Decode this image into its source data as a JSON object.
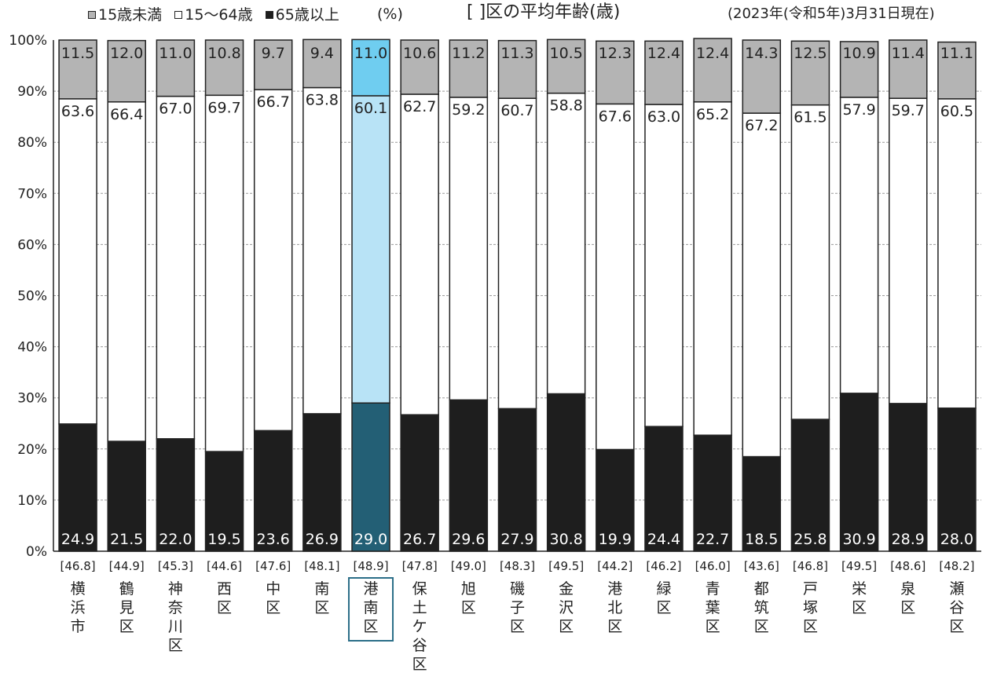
{
  "header": {
    "legend": [
      {
        "label": "15歳未満",
        "color": "#b4b4b4"
      },
      {
        "label": "15～64歳",
        "color": "#ffffff"
      },
      {
        "label": "65歳以上",
        "color": "#1e1e1e"
      }
    ],
    "unit": "(%)",
    "title": "[ ]区の平均年齢(歳)",
    "date": "(2023年(令和5年)3月31日現在)"
  },
  "chart_data": {
    "type": "bar",
    "stacked": true,
    "ylim": [
      0,
      100
    ],
    "yticks": [
      "0%",
      "10%",
      "20%",
      "30%",
      "40%",
      "50%",
      "60%",
      "70%",
      "80%",
      "90%",
      "100%"
    ],
    "categories": [
      "横浜市",
      "鶴見区",
      "神奈川区",
      "西区",
      "中区",
      "南区",
      "港南区",
      "保土ケ谷区",
      "旭区",
      "磯子区",
      "金沢区",
      "港北区",
      "緑区",
      "青葉区",
      "都筑区",
      "戸塚区",
      "栄区",
      "泉区",
      "瀬谷区"
    ],
    "average_age": [
      "[46.8]",
      "[44.9]",
      "[45.3]",
      "[44.6]",
      "[47.6]",
      "[48.1]",
      "[48.9]",
      "[47.8]",
      "[49.0]",
      "[48.3]",
      "[49.5]",
      "[44.2]",
      "[46.2]",
      "[46.0]",
      "[43.6]",
      "[46.8]",
      "[49.5]",
      "[48.6]",
      "[48.2]"
    ],
    "highlight_index": 6,
    "series": [
      {
        "name": "65歳以上",
        "values": [
          24.9,
          21.5,
          22.0,
          19.5,
          23.6,
          26.9,
          29.0,
          26.7,
          29.6,
          27.9,
          30.8,
          19.9,
          24.4,
          22.7,
          18.5,
          25.8,
          30.9,
          28.9,
          28.0
        ],
        "labels": [
          "24.9",
          "21.5",
          "22.0",
          "19.5",
          "23.6",
          "26.9",
          "29.0",
          "26.7",
          "29.6",
          "27.9",
          "30.8",
          "19.9",
          "24.4",
          "22.7",
          "18.5",
          "25.8",
          "30.9",
          "28.9",
          "28.0"
        ]
      },
      {
        "name": "15～64歳",
        "values": [
          63.6,
          66.4,
          67.0,
          69.7,
          66.7,
          63.8,
          60.1,
          62.7,
          59.2,
          60.7,
          58.8,
          67.6,
          63.0,
          65.2,
          67.2,
          61.5,
          57.9,
          59.7,
          60.5
        ],
        "labels": [
          "63.6",
          "66.4",
          "67.0",
          "69.7",
          "66.7",
          "63.8",
          "60.1",
          "62.7",
          "59.2",
          "60.7",
          "58.8",
          "67.6",
          "63.0",
          "65.2",
          "67.2",
          "61.5",
          "57.9",
          "59.7",
          "60.5"
        ]
      },
      {
        "name": "15歳未満",
        "values": [
          11.5,
          12.0,
          11.0,
          10.8,
          9.7,
          9.4,
          11.0,
          10.6,
          11.2,
          11.3,
          10.5,
          12.3,
          12.4,
          12.4,
          14.3,
          12.5,
          10.9,
          11.4,
          11.1
        ],
        "labels": [
          "11.5",
          "12.0",
          "11.0",
          "10.8",
          "9.7",
          "9.4",
          "11.0",
          "10.6",
          "11.2",
          "11.3",
          "10.5",
          "12.3",
          "12.4",
          "12.4",
          "14.3",
          "12.5",
          "10.9",
          "11.4",
          "11.1"
        ]
      }
    ],
    "colors": {
      "under15": "#b4b4b4",
      "working": "#ffffff",
      "over65": "#1e1e1e",
      "hl_under15": "#6fcdf0",
      "hl_working": "#b8e3f6",
      "hl_over65": "#235f75",
      "hl_box": "#2b6e88",
      "label_dark": "#222222",
      "label_light": "#ffffff"
    }
  }
}
